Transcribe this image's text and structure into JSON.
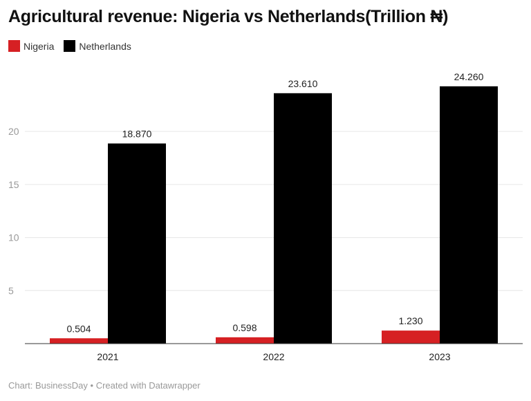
{
  "title": "Agricultural revenue: Nigeria vs Netherlands(Trillion ₦)",
  "legend": [
    {
      "name": "Nigeria",
      "color": "#d62023"
    },
    {
      "name": "Netherlands",
      "color": "#000000"
    }
  ],
  "footer": {
    "source": "Chart: BusinessDay",
    "separator": "•",
    "credit": "Created with Datawrapper"
  },
  "chart_data": {
    "type": "bar",
    "categories": [
      "2021",
      "2022",
      "2023"
    ],
    "series": [
      {
        "name": "Nigeria",
        "color": "#d62023",
        "values": [
          0.504,
          0.598,
          1.23
        ],
        "labels": [
          "0.504",
          "0.598",
          "1.230"
        ]
      },
      {
        "name": "Netherlands",
        "color": "#000000",
        "values": [
          18.87,
          23.61,
          24.26
        ],
        "labels": [
          "18.870",
          "23.610",
          "24.260"
        ]
      }
    ],
    "yticks": [
      5,
      10,
      15,
      20
    ],
    "ylim": [
      0,
      26.4
    ],
    "grid": true,
    "legend_position": "top-left"
  }
}
